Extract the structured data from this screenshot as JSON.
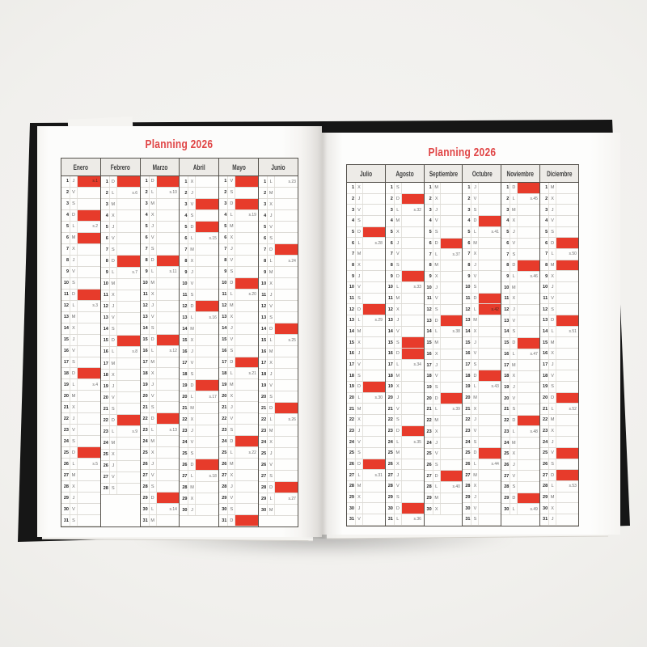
{
  "colors": {
    "highlight_red": "#e73b2b",
    "title_red": "#e04546",
    "cover_black": "#161616"
  },
  "day_letters": [
    "L",
    "M",
    "X",
    "J",
    "V",
    "S",
    "D"
  ],
  "pages": [
    {
      "side": "left",
      "title": "Planning 2026",
      "months": [
        {
          "name": "Enero",
          "days": 31,
          "start": 3,
          "red": [
            1,
            4,
            6,
            11,
            18,
            25
          ],
          "weeks": {
            "1": "s.1",
            "5": "s.2",
            "12": "s.3",
            "19": "s.4",
            "26": "s.5"
          }
        },
        {
          "name": "Febrero",
          "days": 28,
          "start": 6,
          "red": [
            1,
            8,
            15,
            22
          ],
          "weeks": {
            "2": "s.6",
            "9": "s.7",
            "16": "s.8",
            "23": "s.9"
          }
        },
        {
          "name": "Marzo",
          "days": 31,
          "start": 6,
          "red": [
            1,
            8,
            15,
            22,
            29
          ],
          "weeks": {
            "2": "s.10",
            "9": "s.11",
            "16": "s.12",
            "23": "s.13",
            "30": "s.14"
          }
        },
        {
          "name": "Abril",
          "days": 30,
          "start": 2,
          "red": [
            3,
            5,
            12,
            19,
            26
          ],
          "weeks": {
            "6": "s.15",
            "13": "s.16",
            "20": "s.17",
            "27": "s.18"
          }
        },
        {
          "name": "Mayo",
          "days": 31,
          "start": 4,
          "red": [
            1,
            3,
            10,
            17,
            24,
            31
          ],
          "weeks": {
            "4": "s.19",
            "11": "s.20",
            "18": "s.21",
            "25": "s.22"
          }
        },
        {
          "name": "Junio",
          "days": 30,
          "start": 0,
          "red": [
            7,
            14,
            21,
            28
          ],
          "weeks": {
            "1": "s.23",
            "8": "s.24",
            "15": "s.25",
            "22": "s.26",
            "29": "s.27"
          }
        }
      ]
    },
    {
      "side": "right",
      "title": "Planning 2026",
      "months": [
        {
          "name": "Julio",
          "days": 31,
          "start": 2,
          "red": [
            5,
            12,
            19,
            26
          ],
          "weeks": {
            "6": "s.28",
            "13": "s.29",
            "20": "s.30",
            "27": "s.31"
          }
        },
        {
          "name": "Agosto",
          "days": 31,
          "start": 5,
          "red": [
            2,
            9,
            15,
            16,
            23,
            30
          ],
          "weeks": {
            "3": "s.32",
            "10": "s.33",
            "17": "s.34",
            "24": "s.35",
            "31": "s.36"
          }
        },
        {
          "name": "Septiembre",
          "days": 30,
          "start": 1,
          "red": [
            6,
            13,
            20,
            27
          ],
          "weeks": {
            "7": "s.37",
            "14": "s.38",
            "21": "s.39",
            "28": "s.40"
          }
        },
        {
          "name": "Octubre",
          "days": 31,
          "start": 3,
          "red": [
            4,
            11,
            12,
            18,
            25
          ],
          "weeks": {
            "5": "s.41",
            "12": "s.42",
            "19": "s.43",
            "26": "s.44"
          }
        },
        {
          "name": "Noviembre",
          "days": 30,
          "start": 6,
          "red": [
            1,
            8,
            15,
            22,
            29
          ],
          "weeks": {
            "2": "s.45",
            "9": "s.46",
            "16": "s.47",
            "23": "s.48",
            "30": "s.49"
          }
        },
        {
          "name": "Diciembre",
          "days": 31,
          "start": 1,
          "red": [
            6,
            8,
            13,
            20,
            25,
            27
          ],
          "weeks": {
            "7": "s.50",
            "14": "s.51",
            "21": "s.52",
            "28": "s.53"
          }
        }
      ]
    }
  ]
}
